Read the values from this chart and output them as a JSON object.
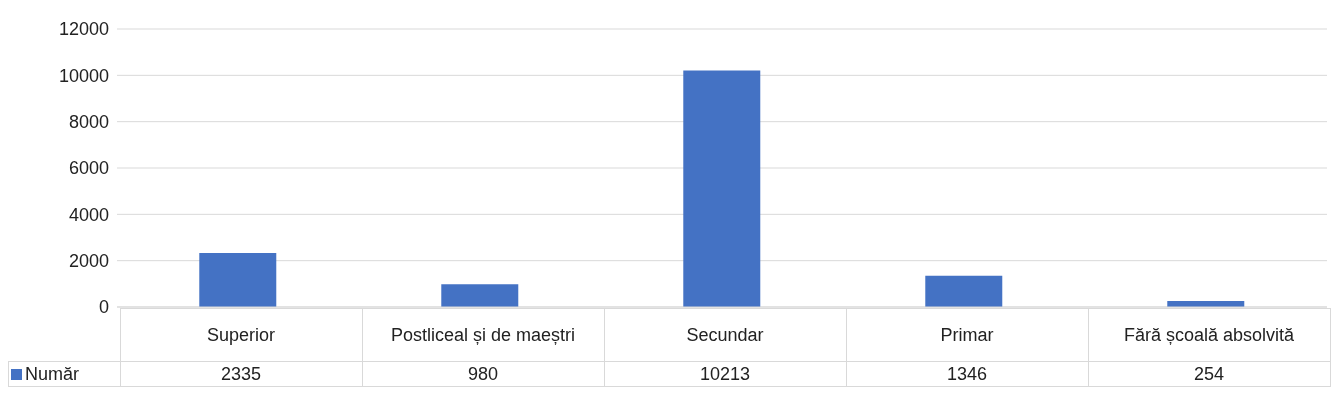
{
  "chart_data": {
    "type": "bar",
    "categories": [
      "Superior",
      "Postliceal și de maeștri",
      "Secundar",
      "Primar",
      "Fără școală absolvită"
    ],
    "series": [
      {
        "name": "Număr",
        "color": "#4472c4",
        "values": [
          2335,
          980,
          10213,
          1346,
          254
        ]
      }
    ],
    "ylim": [
      0,
      12000
    ],
    "yticks": [
      0,
      2000,
      4000,
      6000,
      8000,
      10000,
      12000
    ],
    "grid": "y",
    "legend": "bottom",
    "data_labels": true
  }
}
